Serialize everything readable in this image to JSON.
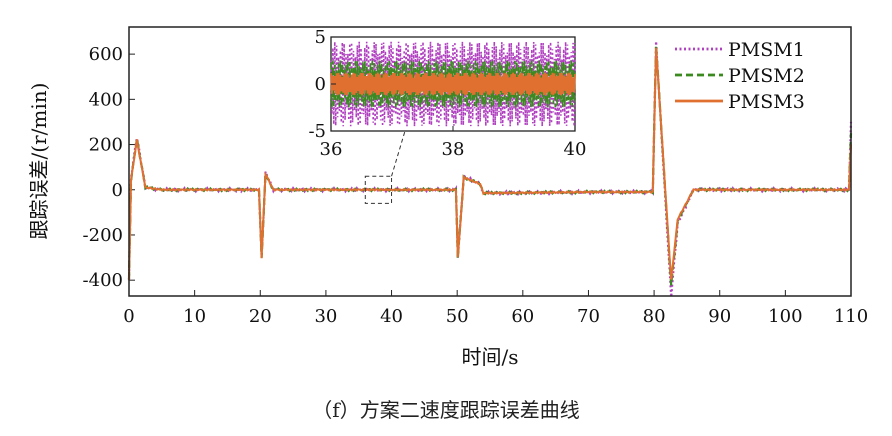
{
  "chart_data": {
    "type": "line",
    "xlabel": "时间/s",
    "ylabel": "跟踪误差/(r/min)",
    "xlim": [
      0,
      110
    ],
    "ylim": [
      -470,
      720
    ],
    "xticks": [
      0,
      10,
      20,
      30,
      40,
      50,
      60,
      70,
      80,
      90,
      100,
      110
    ],
    "yticks": [
      -400,
      -200,
      0,
      200,
      400,
      600
    ],
    "grid": false,
    "legend": "top-right",
    "series": [
      {
        "name": "PMSM1",
        "color": "#b040c0",
        "style": "dotted",
        "x": [
          0,
          0.3,
          1.2,
          2.5,
          5,
          19.8,
          20.2,
          20.8,
          22,
          30,
          49.8,
          50.1,
          51,
          53.5,
          54,
          70,
          79.8,
          80.3,
          82.6,
          83.6,
          86,
          109.7,
          110
        ],
        "y": [
          -400,
          50,
          235,
          10,
          0,
          0,
          -300,
          75,
          0,
          0,
          0,
          -300,
          60,
          25,
          -15,
          -10,
          -10,
          650,
          -470,
          -150,
          0,
          0,
          300
        ]
      },
      {
        "name": "PMSM2",
        "color": "#3a8a20",
        "style": "dashed",
        "x": [
          0,
          0.3,
          1.2,
          2.5,
          5,
          19.8,
          20.2,
          20.8,
          22,
          30,
          49.8,
          50.1,
          51,
          53.5,
          54,
          70,
          79.8,
          80.3,
          82.6,
          83.6,
          86,
          109.7,
          110
        ],
        "y": [
          -400,
          40,
          225,
          10,
          0,
          0,
          -300,
          70,
          0,
          0,
          0,
          -300,
          55,
          25,
          -15,
          -10,
          -10,
          640,
          -420,
          -140,
          0,
          0,
          250
        ]
      },
      {
        "name": "PMSM3",
        "color": "#e07030",
        "style": "solid",
        "x": [
          0,
          0.3,
          1.2,
          2.5,
          5,
          19.8,
          20.2,
          20.8,
          22,
          30,
          49.8,
          50.1,
          51,
          53.5,
          54,
          70,
          79.8,
          80.3,
          82.6,
          83.6,
          86,
          109.7,
          110
        ],
        "y": [
          -400,
          40,
          220,
          10,
          0,
          0,
          -300,
          70,
          0,
          0,
          0,
          -300,
          55,
          25,
          -15,
          -10,
          -10,
          630,
          -400,
          -130,
          0,
          0,
          200
        ]
      }
    ],
    "inset": {
      "xlim": [
        36,
        40
      ],
      "ylim": [
        -5,
        5
      ],
      "xticks": [
        36,
        38,
        40
      ],
      "yticks": [
        -5,
        0,
        5
      ],
      "series": [
        {
          "name": "PMSM1",
          "amplitude": 4.5
        },
        {
          "name": "PMSM2",
          "amplitude": 2.5
        },
        {
          "name": "PMSM3",
          "amplitude": 1.2
        }
      ]
    }
  },
  "caption": "（f）方案二速度跟踪误差曲线"
}
